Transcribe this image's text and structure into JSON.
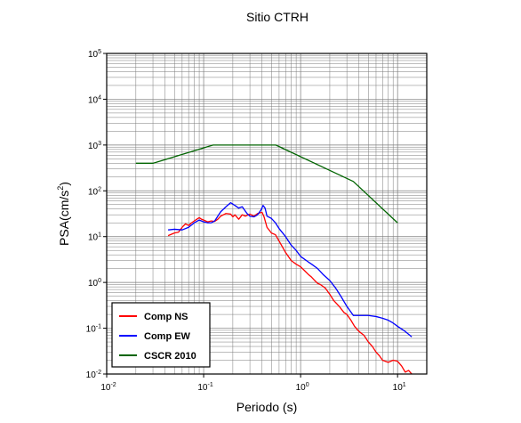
{
  "chart_data": {
    "type": "line",
    "title": "Sitio CTRH",
    "xlabel": "Periodo (s)",
    "ylabel_base": "PSA(cm/s",
    "ylabel_exp": "2",
    "ylabel_close": ")",
    "x_scale": "log",
    "y_scale": "log",
    "xlim": [
      0.01,
      20
    ],
    "ylim": [
      0.01,
      100000
    ],
    "grid": true,
    "legend_position": "bottom-left",
    "x_ticks": [
      {
        "base": "10",
        "exp": "-2",
        "value": 0.01
      },
      {
        "base": "10",
        "exp": "-1",
        "value": 0.1
      },
      {
        "base": "10",
        "exp": "0",
        "value": 1
      },
      {
        "base": "10",
        "exp": "1",
        "value": 10
      }
    ],
    "y_ticks": [
      {
        "base": "10",
        "exp": "-2",
        "value": 0.01
      },
      {
        "base": "10",
        "exp": "-1",
        "value": 0.1
      },
      {
        "base": "10",
        "exp": "0",
        "value": 1
      },
      {
        "base": "10",
        "exp": "1",
        "value": 10
      },
      {
        "base": "10",
        "exp": "2",
        "value": 100
      },
      {
        "base": "10",
        "exp": "3",
        "value": 1000
      },
      {
        "base": "10",
        "exp": "4",
        "value": 10000
      },
      {
        "base": "10",
        "exp": "5",
        "value": 100000
      }
    ],
    "series": [
      {
        "name": "Comp NS",
        "color": "#ff0000",
        "points": [
          [
            0.043,
            10.5
          ],
          [
            0.05,
            12
          ],
          [
            0.055,
            12.5
          ],
          [
            0.06,
            16
          ],
          [
            0.065,
            19
          ],
          [
            0.07,
            17.5
          ],
          [
            0.075,
            20
          ],
          [
            0.08,
            22
          ],
          [
            0.085,
            24
          ],
          [
            0.09,
            26
          ],
          [
            0.095,
            24
          ],
          [
            0.1,
            23
          ],
          [
            0.11,
            21
          ],
          [
            0.12,
            22
          ],
          [
            0.13,
            21.5
          ],
          [
            0.14,
            24
          ],
          [
            0.15,
            28
          ],
          [
            0.17,
            32
          ],
          [
            0.19,
            31
          ],
          [
            0.2,
            27
          ],
          [
            0.21,
            30
          ],
          [
            0.23,
            24
          ],
          [
            0.25,
            30
          ],
          [
            0.27,
            28
          ],
          [
            0.3,
            31
          ],
          [
            0.33,
            28
          ],
          [
            0.36,
            32
          ],
          [
            0.4,
            34
          ],
          [
            0.42,
            27
          ],
          [
            0.45,
            16
          ],
          [
            0.5,
            12
          ],
          [
            0.55,
            11
          ],
          [
            0.6,
            8
          ],
          [
            0.7,
            4.5
          ],
          [
            0.8,
            3
          ],
          [
            0.9,
            2.5
          ],
          [
            1.0,
            2.2
          ],
          [
            1.1,
            1.8
          ],
          [
            1.2,
            1.5
          ],
          [
            1.3,
            1.3
          ],
          [
            1.4,
            1.1
          ],
          [
            1.5,
            0.95
          ],
          [
            1.6,
            0.9
          ],
          [
            1.8,
            0.75
          ],
          [
            2.0,
            0.55
          ],
          [
            2.2,
            0.4
          ],
          [
            2.5,
            0.3
          ],
          [
            2.8,
            0.22
          ],
          [
            3.0,
            0.2
          ],
          [
            3.3,
            0.15
          ],
          [
            3.6,
            0.11
          ],
          [
            4.0,
            0.085
          ],
          [
            4.5,
            0.07
          ],
          [
            5.0,
            0.05
          ],
          [
            5.5,
            0.04
          ],
          [
            6.0,
            0.03
          ],
          [
            6.5,
            0.025
          ],
          [
            7.0,
            0.02
          ],
          [
            8.0,
            0.018
          ],
          [
            9.0,
            0.02
          ],
          [
            10.0,
            0.019
          ],
          [
            11.0,
            0.015
          ],
          [
            12.0,
            0.011
          ],
          [
            13.0,
            0.012
          ],
          [
            14.0,
            0.01
          ]
        ]
      },
      {
        "name": "Comp EW",
        "color": "#0000ff",
        "points": [
          [
            0.043,
            14
          ],
          [
            0.05,
            14.5
          ],
          [
            0.06,
            14
          ],
          [
            0.07,
            16
          ],
          [
            0.08,
            20
          ],
          [
            0.09,
            23
          ],
          [
            0.1,
            21
          ],
          [
            0.11,
            20
          ],
          [
            0.12,
            20
          ],
          [
            0.13,
            22
          ],
          [
            0.14,
            28
          ],
          [
            0.15,
            35
          ],
          [
            0.17,
            45
          ],
          [
            0.19,
            55
          ],
          [
            0.21,
            48
          ],
          [
            0.23,
            42
          ],
          [
            0.25,
            45
          ],
          [
            0.28,
            32
          ],
          [
            0.3,
            28
          ],
          [
            0.33,
            27
          ],
          [
            0.36,
            30
          ],
          [
            0.39,
            38
          ],
          [
            0.41,
            48
          ],
          [
            0.43,
            42
          ],
          [
            0.45,
            28
          ],
          [
            0.5,
            25
          ],
          [
            0.55,
            20
          ],
          [
            0.6,
            15
          ],
          [
            0.7,
            10
          ],
          [
            0.8,
            6.5
          ],
          [
            0.9,
            5
          ],
          [
            1.0,
            3.7
          ],
          [
            1.1,
            3.2
          ],
          [
            1.2,
            2.8
          ],
          [
            1.3,
            2.5
          ],
          [
            1.5,
            2.0
          ],
          [
            1.7,
            1.5
          ],
          [
            2.0,
            1.1
          ],
          [
            2.3,
            0.75
          ],
          [
            2.6,
            0.5
          ],
          [
            3.0,
            0.3
          ],
          [
            3.5,
            0.19
          ],
          [
            4.0,
            0.19
          ],
          [
            5.0,
            0.19
          ],
          [
            6.0,
            0.18
          ],
          [
            7.0,
            0.165
          ],
          [
            8.0,
            0.15
          ],
          [
            9.0,
            0.13
          ],
          [
            10.0,
            0.11
          ],
          [
            12.0,
            0.085
          ],
          [
            14.0,
            0.065
          ]
        ]
      },
      {
        "name": "CSCR 2010",
        "color": "#006400",
        "points": [
          [
            0.02,
            400
          ],
          [
            0.03,
            400
          ],
          [
            0.125,
            1000
          ],
          [
            0.555,
            1000
          ],
          [
            3.5,
            160
          ],
          [
            10.0,
            20
          ]
        ]
      }
    ]
  }
}
